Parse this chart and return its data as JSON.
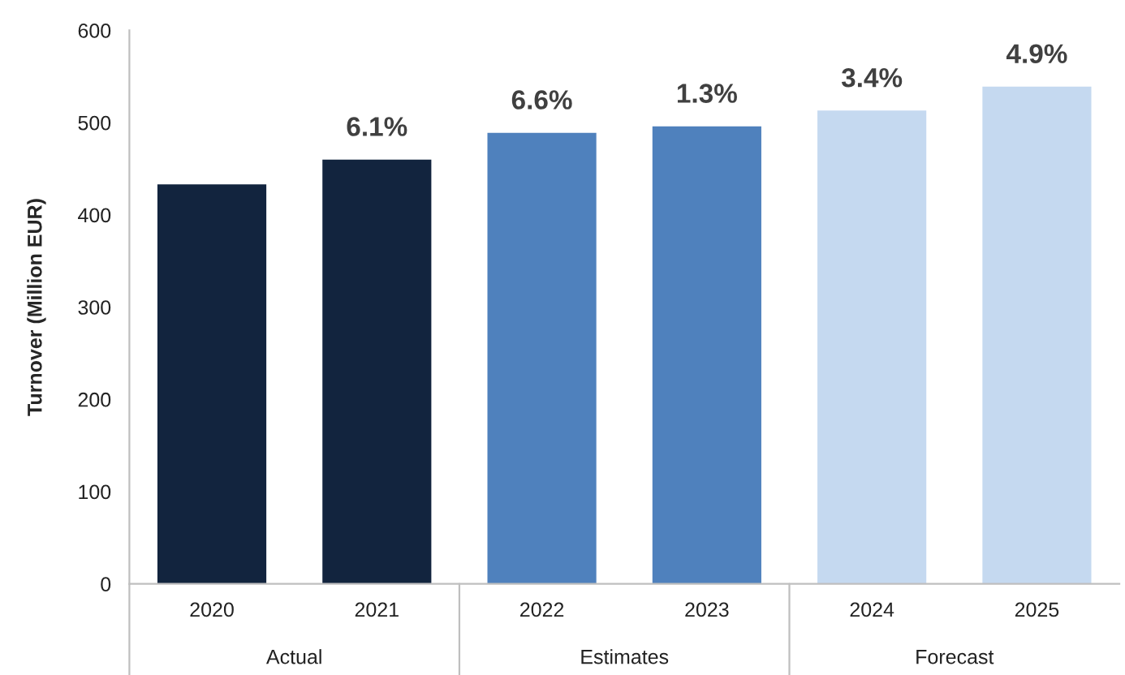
{
  "chart_data": {
    "type": "bar",
    "ylabel": "Turnover (Million EUR)",
    "categories": [
      "2020",
      "2021",
      "2022",
      "2023",
      "2024",
      "2025"
    ],
    "values": [
      433,
      460,
      489,
      496,
      513,
      539
    ],
    "colors": [
      "#12243e",
      "#12243e",
      "#4f81bd",
      "#4f81bd",
      "#c5d9f0",
      "#c5d9f0"
    ],
    "ylim": [
      0,
      600
    ],
    "yticks": [
      0,
      100,
      200,
      300,
      400,
      500,
      600
    ],
    "annotations": [
      {
        "text": "6.1%",
        "x": "2021",
        "y": 460
      },
      {
        "text": "6.6%",
        "x": "2022",
        "y": 489
      },
      {
        "text": "1.3%",
        "x": "2023",
        "y": 496
      },
      {
        "text": "3.4%",
        "x": "2024",
        "y": 513
      },
      {
        "text": "4.9%",
        "x": "2025",
        "y": 539
      },
      "Actual",
      "Estimates",
      "Forecast"
    ],
    "grid": false,
    "legend": false
  }
}
